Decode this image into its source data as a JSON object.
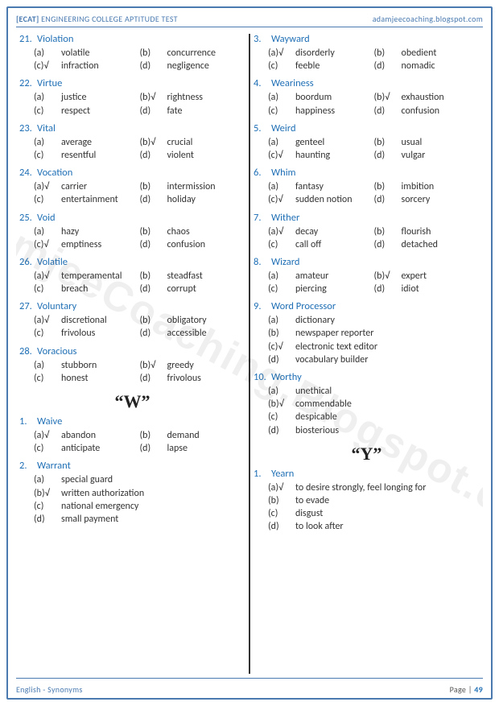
{
  "header": {
    "ecat": "[ECAT]",
    "title": "ENGINEERING COLLEGE APTITUDE TEST",
    "url": "adamjeecoaching.blogspot.com"
  },
  "footer": {
    "subject": "English - Synonyms",
    "page_label": "Page |",
    "page_num": "49"
  },
  "watermark": "AdamjeeCoaching.Blogspot.com",
  "letter_w": "“W”",
  "letter_y": "“Y”",
  "left": [
    {
      "n": "21.",
      "w": "Violation",
      "cols": 2,
      "o": [
        {
          "l": "(a)",
          "t": "volatile"
        },
        {
          "l": "(b)",
          "t": "concurrence"
        },
        {
          "l": "(c)√",
          "t": "infraction"
        },
        {
          "l": "(d)",
          "t": "negligence"
        }
      ]
    },
    {
      "n": "22.",
      "w": "Virtue",
      "cols": 2,
      "o": [
        {
          "l": "(a)",
          "t": "justice"
        },
        {
          "l": "(b)√",
          "t": "rightness"
        },
        {
          "l": "(c)",
          "t": "respect"
        },
        {
          "l": "(d)",
          "t": "fate"
        }
      ]
    },
    {
      "n": "23.",
      "w": "Vital",
      "cols": 2,
      "o": [
        {
          "l": "(a)",
          "t": "average"
        },
        {
          "l": "(b)√",
          "t": "crucial"
        },
        {
          "l": "(c)",
          "t": "resentful"
        },
        {
          "l": "(d)",
          "t": "violent"
        }
      ]
    },
    {
      "n": "24.",
      "w": "Vocation",
      "cols": 2,
      "o": [
        {
          "l": "(a)√",
          "t": "carrier"
        },
        {
          "l": "(b)",
          "t": "intermission"
        },
        {
          "l": "(c)",
          "t": "entertainment"
        },
        {
          "l": "(d)",
          "t": "holiday"
        }
      ]
    },
    {
      "n": "25.",
      "w": "Void",
      "cols": 2,
      "o": [
        {
          "l": "(a)",
          "t": "hazy"
        },
        {
          "l": "(b)",
          "t": "chaos"
        },
        {
          "l": "(c)√",
          "t": "emptiness"
        },
        {
          "l": "(d)",
          "t": "confusion"
        }
      ]
    },
    {
      "n": "26.",
      "w": "Volatile",
      "cols": 2,
      "o": [
        {
          "l": "(a)√",
          "t": "temperamental"
        },
        {
          "l": "(b)",
          "t": "steadfast"
        },
        {
          "l": "(c)",
          "t": "breach"
        },
        {
          "l": "(d)",
          "t": "corrupt"
        }
      ]
    },
    {
      "n": "27.",
      "w": "Voluntary",
      "cols": 2,
      "o": [
        {
          "l": "(a)√",
          "t": "discretional"
        },
        {
          "l": "(b)",
          "t": "obligatory"
        },
        {
          "l": "(c)",
          "t": "frivolous"
        },
        {
          "l": "(d)",
          "t": "accessible"
        }
      ]
    },
    {
      "n": "28.",
      "w": "Voracious",
      "cols": 2,
      "o": [
        {
          "l": "(a)",
          "t": "stubborn"
        },
        {
          "l": "(b)√",
          "t": "greedy"
        },
        {
          "l": "(c)",
          "t": "honest"
        },
        {
          "l": "(d)",
          "t": "frivolous"
        }
      ]
    }
  ],
  "left_w": [
    {
      "n": "1.",
      "w": "Waive",
      "cols": 2,
      "o": [
        {
          "l": "(a)√",
          "t": "abandon"
        },
        {
          "l": "(b)",
          "t": "demand"
        },
        {
          "l": "(c)",
          "t": "anticipate"
        },
        {
          "l": "(d)",
          "t": "lapse"
        }
      ]
    },
    {
      "n": "2.",
      "w": "Warrant",
      "cols": 1,
      "o": [
        {
          "l": "(a)",
          "t": "special guard"
        },
        {
          "l": "(b)√",
          "t": "written authorization"
        },
        {
          "l": "(c)",
          "t": "national emergency"
        },
        {
          "l": "(d)",
          "t": "small payment"
        }
      ]
    }
  ],
  "right": [
    {
      "n": "3.",
      "w": "Wayward",
      "cols": 2,
      "o": [
        {
          "l": "(a)√",
          "t": "disorderly"
        },
        {
          "l": "(b)",
          "t": "obedient"
        },
        {
          "l": "(c)",
          "t": "feeble"
        },
        {
          "l": "(d)",
          "t": "nomadic"
        }
      ]
    },
    {
      "n": "4.",
      "w": "Weariness",
      "cols": 2,
      "o": [
        {
          "l": "(a)",
          "t": "boordum"
        },
        {
          "l": "(b)√",
          "t": "exhaustion"
        },
        {
          "l": "(c)",
          "t": "happiness"
        },
        {
          "l": "(d)",
          "t": "confusion"
        }
      ]
    },
    {
      "n": "5.",
      "w": "Weird",
      "cols": 2,
      "o": [
        {
          "l": "(a)",
          "t": "genteel"
        },
        {
          "l": "(b)",
          "t": "usual"
        },
        {
          "l": "(c)√",
          "t": "haunting"
        },
        {
          "l": "(d)",
          "t": "vulgar"
        }
      ]
    },
    {
      "n": "6.",
      "w": "Whim",
      "cols": 2,
      "o": [
        {
          "l": "(a)",
          "t": "fantasy"
        },
        {
          "l": "(b)",
          "t": "imbition"
        },
        {
          "l": "(c)√",
          "t": "sudden notion"
        },
        {
          "l": "(d)",
          "t": "sorcery"
        }
      ]
    },
    {
      "n": "7.",
      "w": "Wither",
      "cols": 2,
      "o": [
        {
          "l": "(a)√",
          "t": "decay"
        },
        {
          "l": "(b)",
          "t": "flourish"
        },
        {
          "l": "(c)",
          "t": "call off"
        },
        {
          "l": "(d)",
          "t": "detached"
        }
      ]
    },
    {
      "n": "8.",
      "w": "Wizard",
      "cols": 2,
      "o": [
        {
          "l": "(a)",
          "t": "amateur"
        },
        {
          "l": "(b)√",
          "t": "expert"
        },
        {
          "l": "(c)",
          "t": "piercing"
        },
        {
          "l": "(d)",
          "t": "idiot"
        }
      ]
    },
    {
      "n": "9.",
      "w": "Word Processor",
      "cols": 1,
      "o": [
        {
          "l": "(a)",
          "t": "dictionary"
        },
        {
          "l": "(b)",
          "t": "newspaper reporter"
        },
        {
          "l": "(c)√",
          "t": "electronic text editor"
        },
        {
          "l": "(d)",
          "t": "vocabulary builder"
        }
      ]
    },
    {
      "n": "10.",
      "w": "Worthy",
      "cols": 1,
      "o": [
        {
          "l": "(a)",
          "t": "unethical"
        },
        {
          "l": "(b)√",
          "t": "commendable"
        },
        {
          "l": "(c)",
          "t": "despicable"
        },
        {
          "l": "(d)",
          "t": "biosterious"
        }
      ]
    }
  ],
  "right_y": [
    {
      "n": "1.",
      "w": "Yearn",
      "cols": 1,
      "o": [
        {
          "l": "(a)√",
          "t": "to desire strongly, feel longing for"
        },
        {
          "l": "(b)",
          "t": "to evade"
        },
        {
          "l": "(c)",
          "t": "disgust"
        },
        {
          "l": "(d)",
          "t": "to look after"
        }
      ]
    }
  ]
}
